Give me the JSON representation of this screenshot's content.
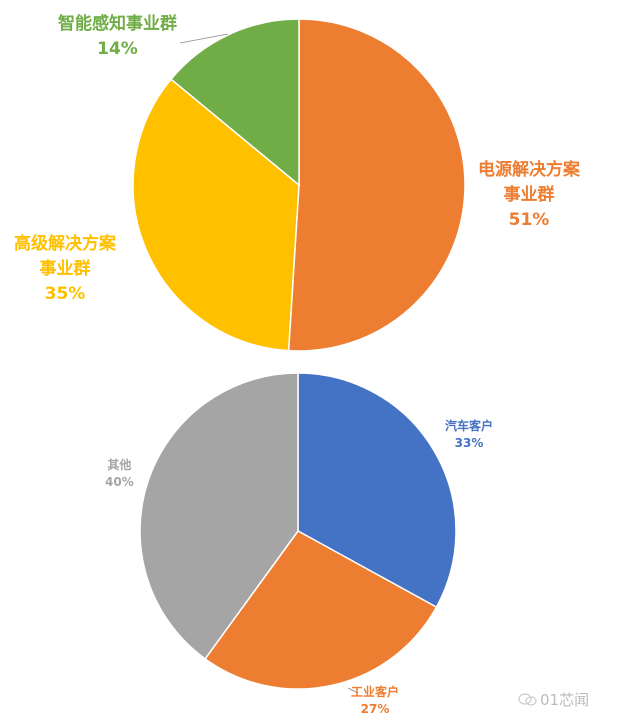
{
  "chart_data": [
    {
      "type": "pie",
      "start": "top",
      "direction": "clockwise",
      "slices": [
        {
          "label": "电源解决方案事业群",
          "label_lines": [
            "电源解决方案",
            "事业群"
          ],
          "value": 51,
          "value_label": "51%",
          "color": "#ED7D31"
        },
        {
          "label": "高级解决方案事业群",
          "label_lines": [
            "高级解决方案",
            "事业群"
          ],
          "value": 35,
          "value_label": "35%",
          "color": "#FFC000"
        },
        {
          "label": "智能感知事业群",
          "label_lines": [
            "智能感知事业群"
          ],
          "value": 14,
          "value_label": "14%",
          "color": "#70AD47"
        }
      ]
    },
    {
      "type": "pie",
      "start": "top",
      "direction": "clockwise",
      "slices": [
        {
          "label": "汽车客户",
          "label_lines": [
            "汽车客户"
          ],
          "value": 33,
          "value_label": "33%",
          "color": "#4472C4"
        },
        {
          "label": "工业客户",
          "label_lines": [
            "工业客户"
          ],
          "value": 27,
          "value_label": "27%",
          "color": "#ED7D31"
        },
        {
          "label": "其他",
          "label_lines": [
            "其他"
          ],
          "value": 40,
          "value_label": "40%",
          "color": "#A5A5A5"
        }
      ]
    }
  ],
  "watermark": {
    "text": "01芯闻",
    "icon": "wechat-icon"
  }
}
